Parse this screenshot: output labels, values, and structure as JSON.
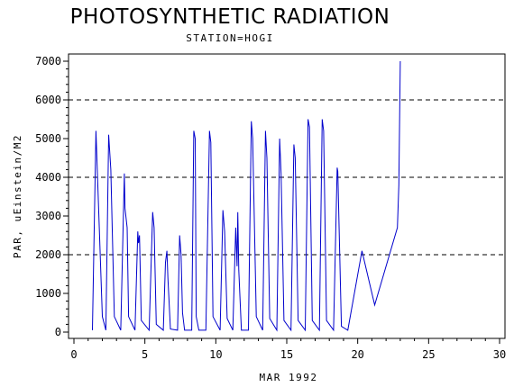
{
  "chart_data": {
    "type": "line",
    "title": "PHOTOSYNTHETIC RADIATION",
    "subtitle": "STATION=HOGI",
    "xlabel": "MAR 1992",
    "ylabel": "PAR, uEinstein/M2",
    "xlim": [
      0,
      30
    ],
    "ylim": [
      0,
      7000
    ],
    "x_ticks": [
      0,
      5,
      10,
      15,
      20,
      25,
      30
    ],
    "y_ticks": [
      0,
      1000,
      2000,
      3000,
      4000,
      5000,
      6000,
      7000
    ],
    "reference_lines": [
      2000,
      4000,
      6000
    ],
    "series_color": "#0000cc",
    "grid": false,
    "series": [
      {
        "x": [
          1.3,
          1.55,
          2.0,
          2.25,
          2.45,
          2.6,
          2.85,
          3.3,
          3.55,
          3.6,
          3.75,
          3.85,
          4.3,
          4.5,
          4.55,
          4.62,
          4.75,
          5.3,
          5.55,
          5.65,
          5.8,
          6.3,
          6.45,
          6.55,
          6.62,
          6.8,
          7.3,
          7.45,
          7.55,
          7.65,
          7.8,
          8.3,
          8.45,
          8.55,
          8.62,
          8.8,
          9.3,
          9.55,
          9.65,
          9.8,
          10.3,
          10.5,
          10.62,
          10.8,
          11.2,
          11.4,
          11.5,
          11.55,
          11.62,
          11.8,
          12.3,
          12.5,
          12.6,
          12.85,
          13.3,
          13.5,
          13.6,
          13.8,
          14.3,
          14.5,
          14.6,
          14.8,
          15.3,
          15.5,
          15.6,
          15.8,
          16.3,
          16.5,
          16.6,
          16.8,
          17.3,
          17.5,
          17.6,
          17.8,
          18.3,
          18.55,
          18.6,
          18.85,
          19.3,
          20.3,
          21.2,
          22.8,
          22.9,
          23.0
        ],
        "values": [
          50,
          5200,
          400,
          50,
          5100,
          4200,
          400,
          50,
          4100,
          3200,
          2700,
          400,
          50,
          2600,
          2300,
          2500,
          300,
          50,
          3100,
          2700,
          200,
          50,
          1800,
          2100,
          1400,
          80,
          50,
          2500,
          2000,
          500,
          50,
          50,
          5200,
          5000,
          400,
          50,
          50,
          5200,
          4900,
          400,
          50,
          3150,
          2600,
          350,
          50,
          2700,
          1700,
          3100,
          1600,
          50,
          50,
          5450,
          5000,
          400,
          50,
          5200,
          4500,
          350,
          50,
          5000,
          4100,
          300,
          50,
          4850,
          4500,
          300,
          50,
          5500,
          5300,
          300,
          50,
          5500,
          5200,
          300,
          50,
          4250,
          4150,
          150,
          50,
          2100,
          700,
          2700,
          3800,
          7000
        ]
      }
    ]
  }
}
